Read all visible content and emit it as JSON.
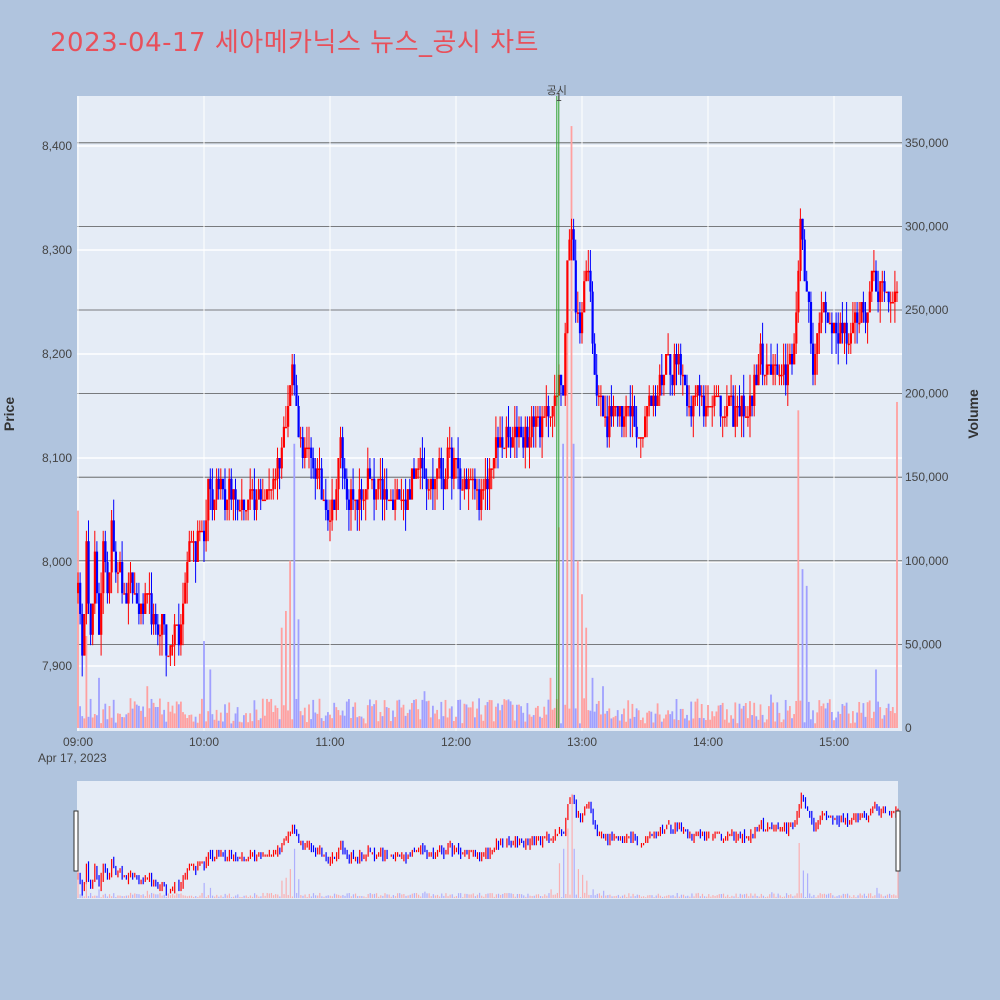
{
  "title": "2023-04-17 세아메카닉스 뉴스_공시 차트",
  "colors": {
    "page_bg": "#b0c4de",
    "plot_bg": "#e5ecf6",
    "title": "#e8505b",
    "up": "#ff0000",
    "down": "#0000ff",
    "volume_up": "#ffa0a0",
    "volume_down": "#a0a0ff",
    "marker_line": "#2ca02c"
  },
  "annotation": {
    "label": "공시",
    "index": "1",
    "time": "12:48"
  },
  "chart_data": {
    "type": "candlestick",
    "xlabel": "",
    "ylabel": "Price",
    "y2label": "Volume",
    "date_label": "Apr 17, 2023",
    "x_ticks": [
      "09:00",
      "10:00",
      "11:00",
      "12:00",
      "13:00",
      "14:00",
      "15:00"
    ],
    "x_range": [
      "09:00",
      "15:30"
    ],
    "price_ticks": [
      "7,900",
      "8,000",
      "8,100",
      "8,200",
      "8,300",
      "8,400"
    ],
    "price_range": [
      7845,
      8455
    ],
    "volume_ticks": [
      "0",
      "50,000",
      "100,000",
      "150,000",
      "200,000",
      "250,000",
      "300,000",
      "350,000"
    ],
    "volume_range": [
      0,
      380000
    ],
    "price_path": [
      [
        "09:00",
        7990
      ],
      [
        "09:02",
        7900
      ],
      [
        "09:04",
        8030
      ],
      [
        "09:06",
        7920
      ],
      [
        "09:08",
        8000
      ],
      [
        "09:10",
        7930
      ],
      [
        "09:12",
        8030
      ],
      [
        "09:14",
        7960
      ],
      [
        "09:16",
        8040
      ],
      [
        "09:18",
        8000
      ],
      [
        "09:20",
        7990
      ],
      [
        "09:22",
        7960
      ],
      [
        "09:25",
        7980
      ],
      [
        "09:28",
        7960
      ],
      [
        "09:31",
        7950
      ],
      [
        "09:34",
        7960
      ],
      [
        "09:37",
        7930
      ],
      [
        "09:40",
        7950
      ],
      [
        "09:42",
        7920
      ],
      [
        "09:44",
        7910
      ],
      [
        "09:46",
        7940
      ],
      [
        "09:48",
        7920
      ],
      [
        "09:50",
        7960
      ],
      [
        "09:52",
        8000
      ],
      [
        "09:54",
        8030
      ],
      [
        "09:56",
        8010
      ],
      [
        "09:58",
        8040
      ],
      [
        "10:00",
        8010
      ],
      [
        "10:02",
        8080
      ],
      [
        "10:04",
        8060
      ],
      [
        "10:06",
        8080
      ],
      [
        "10:08",
        8090
      ],
      [
        "10:10",
        8060
      ],
      [
        "10:12",
        8080
      ],
      [
        "10:15",
        8060
      ],
      [
        "10:18",
        8050
      ],
      [
        "10:21",
        8060
      ],
      [
        "10:24",
        8050
      ],
      [
        "10:27",
        8070
      ],
      [
        "10:30",
        8060
      ],
      [
        "10:33",
        8080
      ],
      [
        "10:36",
        8100
      ],
      [
        "10:38",
        8120
      ],
      [
        "10:40",
        8160
      ],
      [
        "10:42",
        8190
      ],
      [
        "10:44",
        8150
      ],
      [
        "10:46",
        8120
      ],
      [
        "10:48",
        8100
      ],
      [
        "10:51",
        8100
      ],
      [
        "10:54",
        8080
      ],
      [
        "10:57",
        8060
      ],
      [
        "11:00",
        8050
      ],
      [
        "11:03",
        8070
      ],
      [
        "11:05",
        8110
      ],
      [
        "11:07",
        8080
      ],
      [
        "11:09",
        8060
      ],
      [
        "11:12",
        8050
      ],
      [
        "11:15",
        8060
      ],
      [
        "11:18",
        8080
      ],
      [
        "11:21",
        8060
      ],
      [
        "11:24",
        8070
      ],
      [
        "11:27",
        8060
      ],
      [
        "11:30",
        8050
      ],
      [
        "11:33",
        8070
      ],
      [
        "11:36",
        8060
      ],
      [
        "11:40",
        8080
      ],
      [
        "11:43",
        8110
      ],
      [
        "11:45",
        8090
      ],
      [
        "11:48",
        8070
      ],
      [
        "11:51",
        8090
      ],
      [
        "11:54",
        8080
      ],
      [
        "11:57",
        8100
      ],
      [
        "12:00",
        8090
      ],
      [
        "12:03",
        8070
      ],
      [
        "12:06",
        8080
      ],
      [
        "12:09",
        8070
      ],
      [
        "12:12",
        8060
      ],
      [
        "12:15",
        8070
      ],
      [
        "12:17",
        8100
      ],
      [
        "12:20",
        8110
      ],
      [
        "12:23",
        8120
      ],
      [
        "12:26",
        8110
      ],
      [
        "12:29",
        8130
      ],
      [
        "12:32",
        8120
      ],
      [
        "12:35",
        8120
      ],
      [
        "12:38",
        8140
      ],
      [
        "12:41",
        8130
      ],
      [
        "12:44",
        8150
      ],
      [
        "12:47",
        8150
      ],
      [
        "12:49",
        8170
      ],
      [
        "12:51",
        8170
      ],
      [
        "12:53",
        8290
      ],
      [
        "12:55",
        8320
      ],
      [
        "12:57",
        8250
      ],
      [
        "12:59",
        8220
      ],
      [
        "13:01",
        8270
      ],
      [
        "13:03",
        8290
      ],
      [
        "13:05",
        8220
      ],
      [
        "13:07",
        8170
      ],
      [
        "13:09",
        8150
      ],
      [
        "13:11",
        8130
      ],
      [
        "13:13",
        8140
      ],
      [
        "13:16",
        8150
      ],
      [
        "13:19",
        8130
      ],
      [
        "13:22",
        8160
      ],
      [
        "13:25",
        8140
      ],
      [
        "13:28",
        8120
      ],
      [
        "13:31",
        8150
      ],
      [
        "13:34",
        8150
      ],
      [
        "13:37",
        8170
      ],
      [
        "13:40",
        8200
      ],
      [
        "13:43",
        8180
      ],
      [
        "13:46",
        8200
      ],
      [
        "13:49",
        8170
      ],
      [
        "13:52",
        8150
      ],
      [
        "13:55",
        8160
      ],
      [
        "13:58",
        8150
      ],
      [
        "14:01",
        8160
      ],
      [
        "14:04",
        8150
      ],
      [
        "14:07",
        8140
      ],
      [
        "14:10",
        8150
      ],
      [
        "14:13",
        8140
      ],
      [
        "14:16",
        8150
      ],
      [
        "14:19",
        8140
      ],
      [
        "14:22",
        8170
      ],
      [
        "14:25",
        8200
      ],
      [
        "14:28",
        8180
      ],
      [
        "14:31",
        8190
      ],
      [
        "14:34",
        8170
      ],
      [
        "14:37",
        8180
      ],
      [
        "14:40",
        8200
      ],
      [
        "14:42",
        8240
      ],
      [
        "14:44",
        8320
      ],
      [
        "14:46",
        8270
      ],
      [
        "14:48",
        8250
      ],
      [
        "14:50",
        8190
      ],
      [
        "14:52",
        8220
      ],
      [
        "14:55",
        8250
      ],
      [
        "14:58",
        8230
      ],
      [
        "15:01",
        8220
      ],
      [
        "15:04",
        8230
      ],
      [
        "15:07",
        8200
      ],
      [
        "15:10",
        8230
      ],
      [
        "15:13",
        8250
      ],
      [
        "15:15",
        8240
      ],
      [
        "15:18",
        8270
      ],
      [
        "15:21",
        8260
      ],
      [
        "15:24",
        8270
      ],
      [
        "15:27",
        8250
      ],
      [
        "15:30",
        8270
      ]
    ],
    "volume_spikes": [
      [
        "09:00",
        130000
      ],
      [
        "09:04",
        55000
      ],
      [
        "09:10",
        30000
      ],
      [
        "09:33",
        25000
      ],
      [
        "10:00",
        52000
      ],
      [
        "10:03",
        35000
      ],
      [
        "10:37",
        60000
      ],
      [
        "10:39",
        70000
      ],
      [
        "10:41",
        100000
      ],
      [
        "10:43",
        170000
      ],
      [
        "10:45",
        65000
      ],
      [
        "11:28",
        12000
      ],
      [
        "11:45",
        22000
      ],
      [
        "12:30",
        14000
      ],
      [
        "12:45",
        30000
      ],
      [
        "12:49",
        120000
      ],
      [
        "12:51",
        170000
      ],
      [
        "12:53",
        240000
      ],
      [
        "12:55",
        360000
      ],
      [
        "12:56",
        170000
      ],
      [
        "12:58",
        100000
      ],
      [
        "13:00",
        80000
      ],
      [
        "13:02",
        60000
      ],
      [
        "13:05",
        30000
      ],
      [
        "13:10",
        25000
      ],
      [
        "14:30",
        20000
      ],
      [
        "14:43",
        190000
      ],
      [
        "14:45",
        95000
      ],
      [
        "14:47",
        85000
      ],
      [
        "15:20",
        35000
      ],
      [
        "15:30",
        195000
      ]
    ],
    "volume_baseline": 18000
  }
}
